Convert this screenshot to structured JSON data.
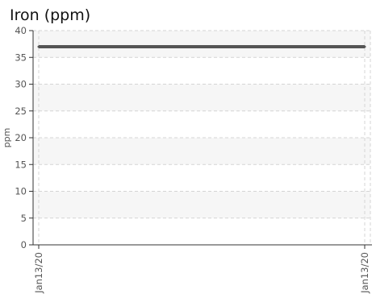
{
  "chart_data": {
    "type": "line",
    "title": "Iron (ppm)",
    "xlabel": "",
    "ylabel": "ppm",
    "categories": [
      "Jan13/20",
      "Jan13/20"
    ],
    "series": [
      {
        "values": [
          37,
          37
        ]
      }
    ],
    "ylim": [
      0,
      40
    ],
    "yticks": [
      0,
      5,
      10,
      15,
      20,
      25,
      30,
      35,
      40
    ],
    "grid": true,
    "band_fill": "#f6f6f6",
    "grid_color": "#d4d4d4",
    "axis_color": "#333333",
    "line_color": "#555555"
  }
}
